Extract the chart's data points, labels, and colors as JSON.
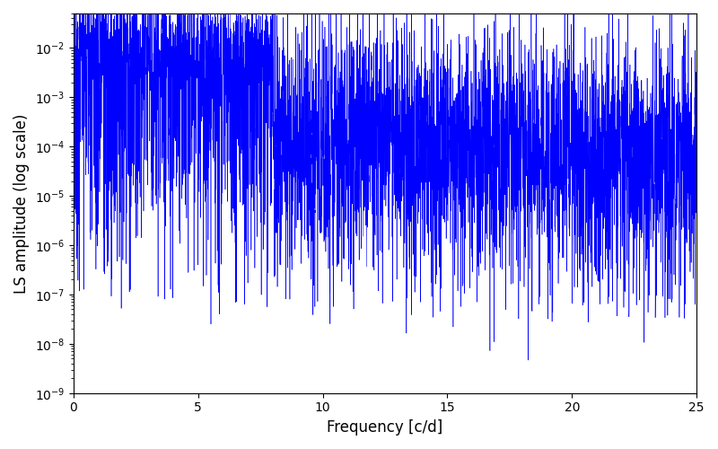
{
  "xlabel": "Frequency [c/d]",
  "ylabel": "LS amplitude (log scale)",
  "xlim": [
    0,
    25
  ],
  "ylim": [
    3e-09,
    0.15
  ],
  "ylim_display": [
    3e-09,
    0.15
  ],
  "line_color": "#0000ff",
  "background_color": "#ffffff",
  "seed": 7,
  "n_points": 5000,
  "freq_max": 25.0,
  "figsize": [
    8.0,
    5.0
  ],
  "dpi": 100
}
